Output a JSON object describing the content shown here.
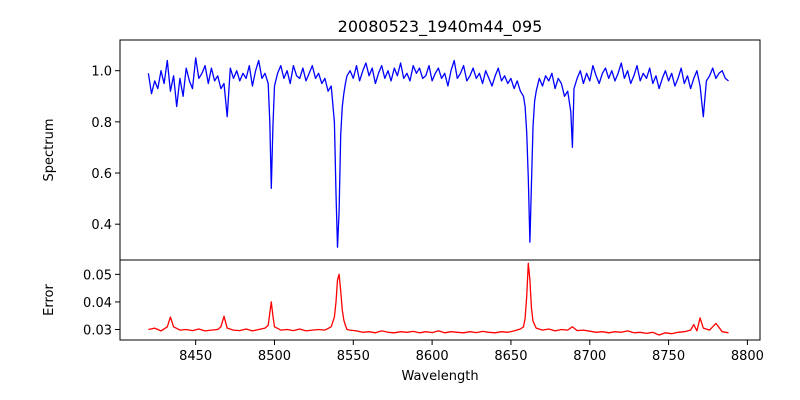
{
  "chart_data": [
    {
      "type": "line",
      "title": "20080523_1940m44_095",
      "xlabel": "",
      "ylabel": "Spectrum",
      "xlim": [
        8402,
        8808
      ],
      "ylim": [
        0.26,
        1.12
      ],
      "yticks": [
        0.4,
        0.6,
        0.8,
        1.0
      ],
      "ytick_labels": [
        "0.4",
        "0.6",
        "0.8",
        "1.0"
      ],
      "grid": false,
      "series": [
        {
          "color": "#0000ff",
          "x": [
            8420,
            8422,
            8424,
            8426,
            8428,
            8430,
            8432,
            8434,
            8436,
            8438,
            8440,
            8442,
            8444,
            8446,
            8448,
            8450,
            8452,
            8454,
            8456,
            8458,
            8460,
            8462,
            8464,
            8466,
            8468,
            8470,
            8472,
            8474,
            8476,
            8478,
            8480,
            8482,
            8484,
            8486,
            8488,
            8490,
            8492,
            8494,
            8496,
            8497,
            8498,
            8499,
            8500,
            8502,
            8504,
            8506,
            8508,
            8510,
            8512,
            8514,
            8516,
            8518,
            8520,
            8522,
            8524,
            8526,
            8528,
            8530,
            8532,
            8534,
            8536,
            8538,
            8539,
            8540,
            8541,
            8542,
            8543,
            8544,
            8545,
            8546,
            8548,
            8550,
            8552,
            8554,
            8556,
            8558,
            8560,
            8562,
            8564,
            8566,
            8568,
            8570,
            8572,
            8574,
            8576,
            8578,
            8580,
            8582,
            8584,
            8586,
            8588,
            8590,
            8592,
            8594,
            8596,
            8598,
            8600,
            8602,
            8604,
            8606,
            8608,
            8610,
            8612,
            8614,
            8616,
            8618,
            8620,
            8622,
            8624,
            8626,
            8628,
            8630,
            8632,
            8634,
            8636,
            8638,
            8640,
            8642,
            8644,
            8646,
            8648,
            8650,
            8652,
            8654,
            8656,
            8658,
            8659,
            8660,
            8661,
            8662,
            8663,
            8664,
            8665,
            8666,
            8668,
            8670,
            8672,
            8674,
            8676,
            8678,
            8680,
            8682,
            8684,
            8686,
            8688,
            8689,
            8690,
            8692,
            8694,
            8696,
            8698,
            8700,
            8702,
            8704,
            8706,
            8708,
            8710,
            8712,
            8714,
            8716,
            8718,
            8720,
            8722,
            8724,
            8726,
            8728,
            8730,
            8732,
            8734,
            8736,
            8738,
            8740,
            8742,
            8744,
            8746,
            8748,
            8750,
            8752,
            8754,
            8756,
            8758,
            8760,
            8762,
            8764,
            8766,
            8768,
            8770,
            8772,
            8774,
            8776,
            8778,
            8780,
            8782,
            8784,
            8786,
            8788
          ],
          "values": [
            0.99,
            0.91,
            0.96,
            0.93,
            1.0,
            0.95,
            1.04,
            0.92,
            0.98,
            0.86,
            0.97,
            0.9,
            1.01,
            0.96,
            0.93,
            1.05,
            0.97,
            0.99,
            1.02,
            0.95,
            1.01,
            0.96,
            0.98,
            0.93,
            0.95,
            0.82,
            1.01,
            0.97,
            1.0,
            0.96,
            0.99,
            0.97,
            1.02,
            0.94,
            1.0,
            1.04,
            0.97,
            0.99,
            0.95,
            0.8,
            0.54,
            0.78,
            0.94,
            0.99,
            1.02,
            0.97,
            1.0,
            0.95,
            1.02,
            0.98,
            0.97,
            1.01,
            0.96,
            0.99,
            1.02,
            0.97,
            0.99,
            0.95,
            0.97,
            0.92,
            0.94,
            0.8,
            0.52,
            0.31,
            0.45,
            0.75,
            0.86,
            0.91,
            0.95,
            0.98,
            1.0,
            0.97,
            1.02,
            0.96,
            1.0,
            1.03,
            0.98,
            1.01,
            0.95,
            0.99,
            1.02,
            0.97,
            1.0,
            0.96,
            1.01,
            0.98,
            1.03,
            0.97,
            0.99,
            0.96,
            1.02,
            0.99,
            1.01,
            0.97,
            0.98,
            1.02,
            0.96,
            0.99,
            1.01,
            0.97,
            0.99,
            0.94,
            1.0,
            1.04,
            0.97,
            0.99,
            1.02,
            0.96,
            0.98,
            1.01,
            0.97,
            0.99,
            0.95,
            1.0,
            0.97,
            0.94,
            0.98,
            1.01,
            0.96,
            0.98,
            0.95,
            0.97,
            0.93,
            0.96,
            0.92,
            0.9,
            0.86,
            0.76,
            0.58,
            0.33,
            0.55,
            0.78,
            0.88,
            0.92,
            0.97,
            0.94,
            0.98,
            0.96,
            0.99,
            0.93,
            0.97,
            0.95,
            0.9,
            0.92,
            0.84,
            0.7,
            0.93,
            0.97,
            1.0,
            0.95,
            0.99,
            0.96,
            1.02,
            0.98,
            0.95,
            0.99,
            1.01,
            0.97,
            1.0,
            0.96,
            0.99,
            1.03,
            0.97,
            1.0,
            0.95,
            0.98,
            1.02,
            0.96,
            0.99,
            0.97,
            1.01,
            0.95,
            0.98,
            0.93,
            0.97,
            1.0,
            0.96,
            0.99,
            0.94,
            0.97,
            1.01,
            0.95,
            0.98,
            0.93,
            0.97,
            1.0,
            0.94,
            0.82,
            0.96,
            0.98,
            1.01,
            0.97,
            0.99,
            1.0,
            0.97,
            0.96
          ]
        }
      ]
    },
    {
      "type": "line",
      "title": "",
      "xlabel": "Wavelength",
      "ylabel": "Error",
      "xlim": [
        8402,
        8808
      ],
      "ylim": [
        0.0262,
        0.0552
      ],
      "xticks": [
        8450,
        8500,
        8550,
        8600,
        8650,
        8700,
        8750,
        8800
      ],
      "xtick_labels": [
        "8450",
        "8500",
        "8550",
        "8600",
        "8650",
        "8700",
        "8750",
        "8800"
      ],
      "yticks": [
        0.03,
        0.04,
        0.05
      ],
      "ytick_labels": [
        "0.03",
        "0.04",
        "0.05"
      ],
      "grid": false,
      "series": [
        {
          "color": "#ff0000",
          "x": [
            8420,
            8424,
            8428,
            8432,
            8434,
            8436,
            8440,
            8444,
            8448,
            8452,
            8456,
            8460,
            8464,
            8466,
            8468,
            8470,
            8474,
            8478,
            8482,
            8486,
            8490,
            8494,
            8496,
            8497,
            8498,
            8499,
            8500,
            8504,
            8508,
            8512,
            8516,
            8520,
            8524,
            8528,
            8532,
            8536,
            8538,
            8539,
            8540,
            8541,
            8542,
            8543,
            8544,
            8545,
            8546,
            8548,
            8552,
            8556,
            8560,
            8564,
            8568,
            8572,
            8576,
            8580,
            8584,
            8588,
            8592,
            8596,
            8600,
            8604,
            8608,
            8612,
            8616,
            8620,
            8624,
            8628,
            8632,
            8636,
            8640,
            8644,
            8648,
            8652,
            8656,
            8658,
            8659,
            8660,
            8661,
            8662,
            8663,
            8664,
            8666,
            8670,
            8674,
            8678,
            8682,
            8686,
            8689,
            8692,
            8696,
            8700,
            8704,
            8708,
            8712,
            8716,
            8720,
            8724,
            8728,
            8732,
            8736,
            8740,
            8744,
            8748,
            8752,
            8756,
            8760,
            8764,
            8766,
            8768,
            8770,
            8772,
            8776,
            8780,
            8784,
            8788
          ],
          "values": [
            0.03,
            0.0305,
            0.0295,
            0.031,
            0.0345,
            0.031,
            0.0298,
            0.03,
            0.0296,
            0.0302,
            0.0295,
            0.0298,
            0.03,
            0.031,
            0.0348,
            0.0305,
            0.0298,
            0.0296,
            0.0302,
            0.0295,
            0.03,
            0.0305,
            0.0315,
            0.036,
            0.04,
            0.035,
            0.031,
            0.0298,
            0.03,
            0.0296,
            0.0302,
            0.0295,
            0.0298,
            0.03,
            0.0298,
            0.031,
            0.0345,
            0.04,
            0.048,
            0.05,
            0.044,
            0.037,
            0.0335,
            0.0315,
            0.03,
            0.0298,
            0.0295,
            0.029,
            0.0292,
            0.0288,
            0.0295,
            0.029,
            0.0288,
            0.0292,
            0.029,
            0.0293,
            0.0288,
            0.0292,
            0.0289,
            0.0295,
            0.0288,
            0.0292,
            0.029,
            0.0288,
            0.0292,
            0.0289,
            0.0293,
            0.029,
            0.0288,
            0.0292,
            0.029,
            0.0295,
            0.0302,
            0.031,
            0.034,
            0.042,
            0.054,
            0.048,
            0.038,
            0.033,
            0.0305,
            0.0298,
            0.0302,
            0.0295,
            0.03,
            0.0298,
            0.031,
            0.0296,
            0.0298,
            0.0294,
            0.029,
            0.0292,
            0.0288,
            0.0292,
            0.029,
            0.0295,
            0.0288,
            0.029,
            0.0286,
            0.029,
            0.028,
            0.0288,
            0.0285,
            0.029,
            0.0292,
            0.0298,
            0.0318,
            0.0295,
            0.0342,
            0.0305,
            0.0298,
            0.0322,
            0.0292,
            0.0288
          ]
        }
      ]
    }
  ]
}
